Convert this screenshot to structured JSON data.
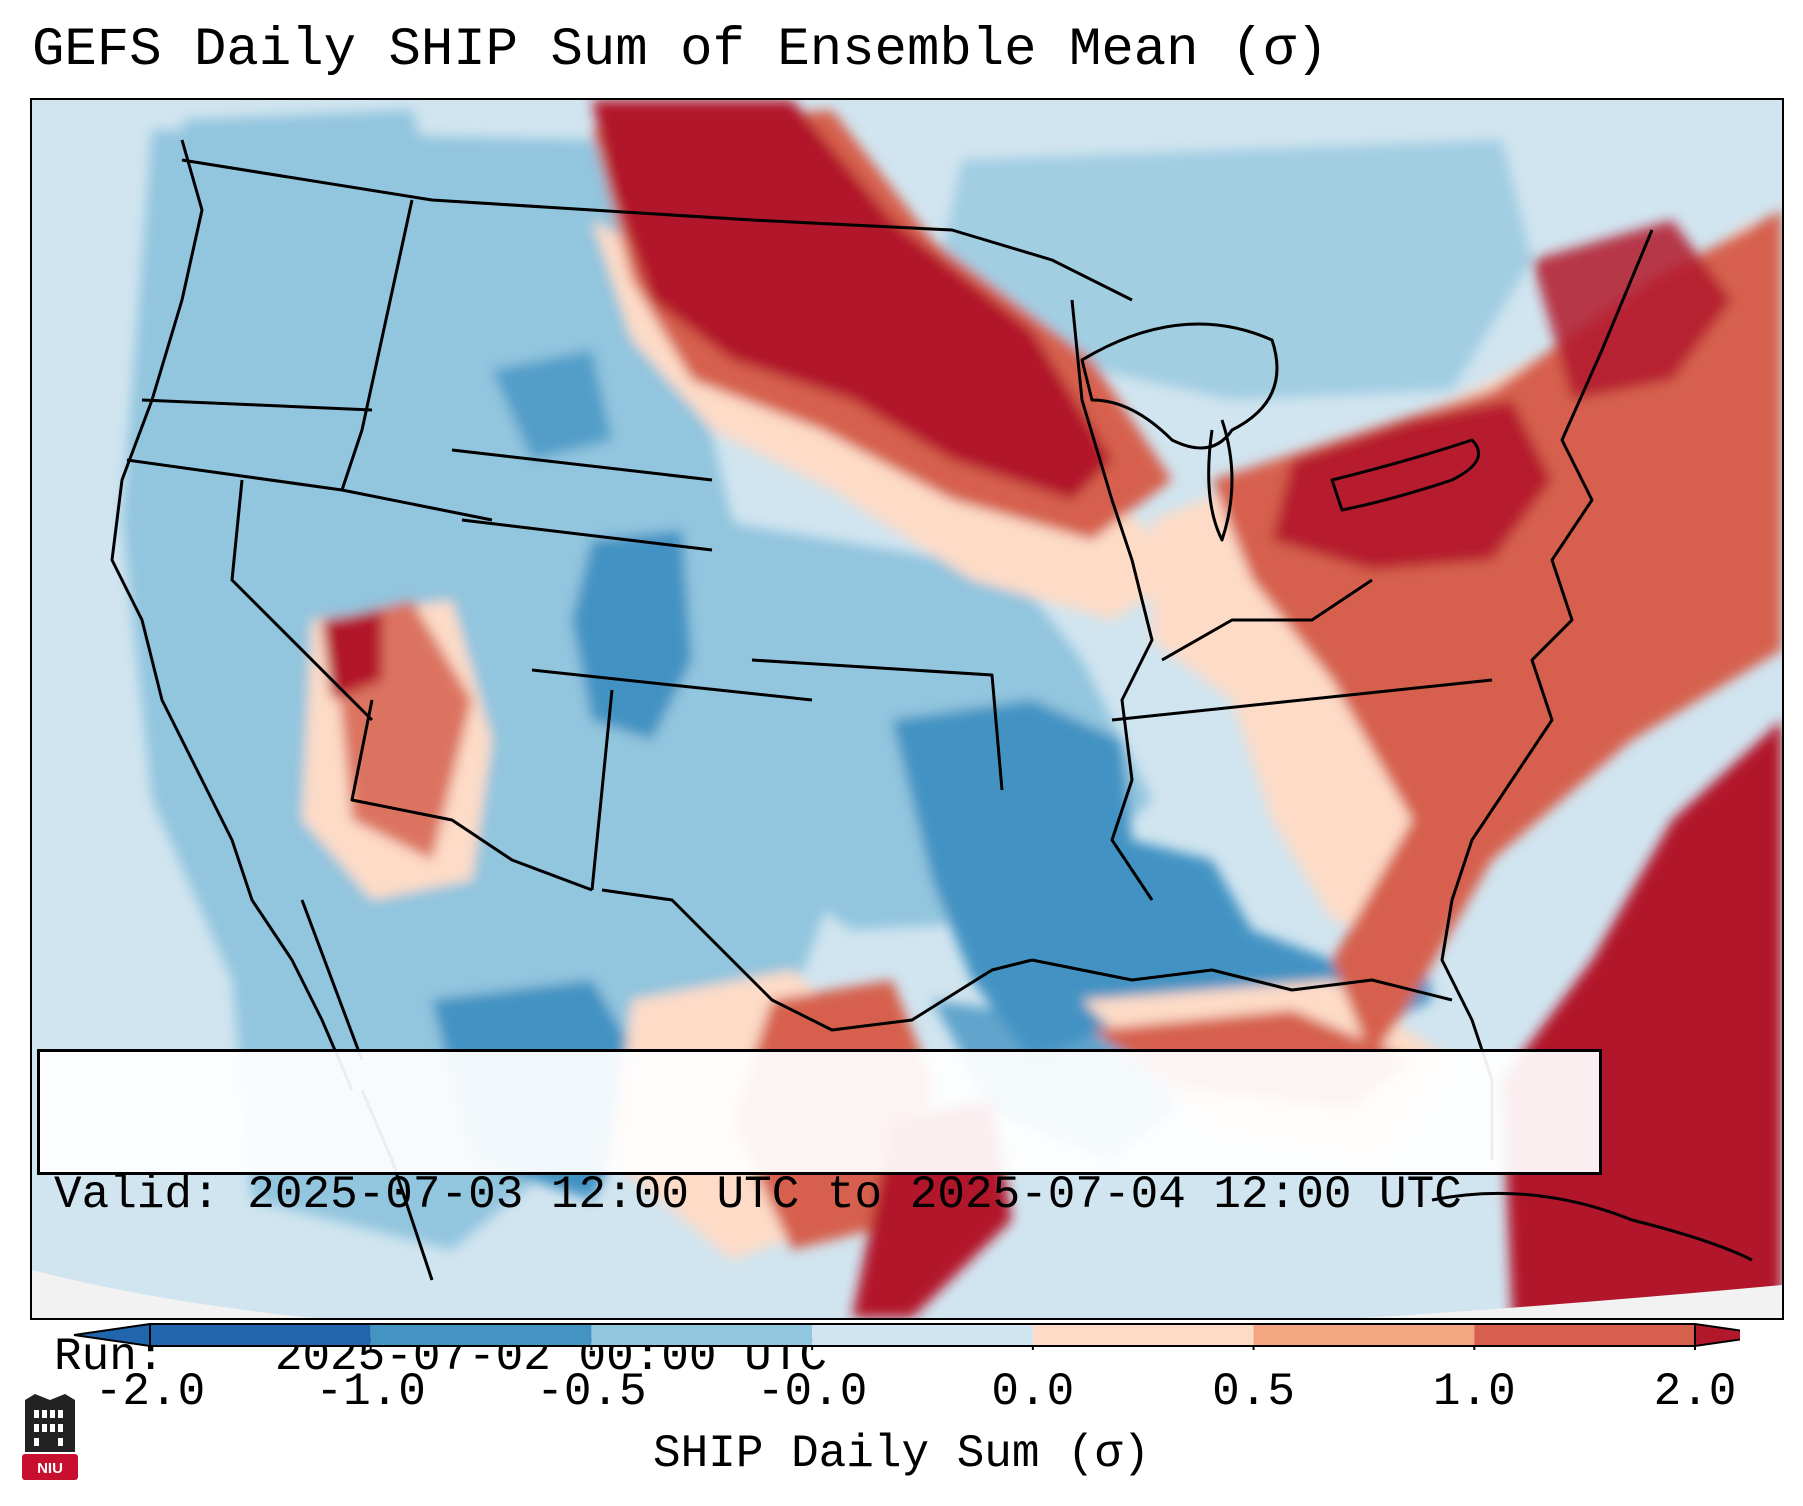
{
  "title": "GEFS Daily SHIP Sum of Ensemble Mean (σ)",
  "info": {
    "valid_label": "Valid:",
    "valid_value": "2025-07-03 12:00 UTC to 2025-07-04 12:00 UTC",
    "run_label": "Run:",
    "run_value": "2025-07-02 00:00 UTC"
  },
  "colorbar": {
    "label": "SHIP Daily Sum (σ)",
    "ticks": [
      "-2.0",
      "-1.0",
      "-0.5",
      "-0.0",
      "0.0",
      "0.5",
      "1.0",
      "2.0"
    ],
    "colors": [
      "#2166ac",
      "#4393c3",
      "#92c5de",
      "#d1e5f0",
      "#fddbc7",
      "#f4a582",
      "#d6604d",
      "#b2182b"
    ],
    "under_color": "#2166ac",
    "over_color": "#b2182b"
  },
  "logo": {
    "text": "NIU",
    "color": "#c8102e"
  },
  "map": {
    "region": "Continental United States",
    "field": "SHIP daily sum anomaly",
    "projection_edge_color": "#f2f2f2"
  }
}
